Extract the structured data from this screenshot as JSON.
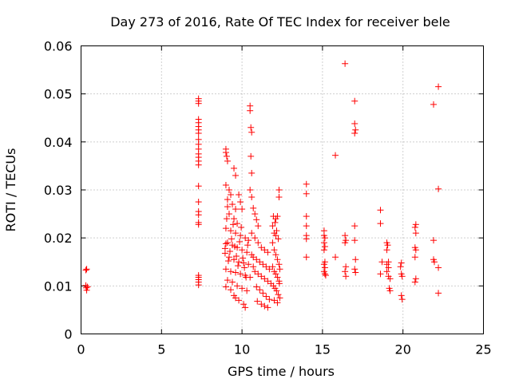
{
  "chart_data": {
    "type": "scatter",
    "title": "Day 273 of 2016, Rate Of TEC Index for receiver bele",
    "xlabel": "GPS time / hours",
    "ylabel": "ROTI / TECUs",
    "xlim": [
      0,
      25
    ],
    "ylim": [
      0,
      0.06
    ],
    "xticks": [
      0,
      5,
      10,
      15,
      20,
      25
    ],
    "xtick_labels": [
      "0",
      "5",
      "10",
      "15",
      "20",
      "25"
    ],
    "yticks": [
      0,
      0.01,
      0.02,
      0.03,
      0.04,
      0.05,
      0.06
    ],
    "ytick_labels": [
      "0",
      "0.01",
      "0.02",
      "0.03",
      "0.04",
      "0.05",
      "0.06"
    ],
    "grid": true,
    "marker": "+",
    "color": "#ff0000",
    "series": [
      {
        "name": "ROTI",
        "points": [
          [
            0.3,
            0.0133
          ],
          [
            0.35,
            0.0135
          ],
          [
            0.3,
            0.0101
          ],
          [
            0.32,
            0.0096
          ],
          [
            0.35,
            0.0091
          ],
          [
            0.4,
            0.0098
          ],
          [
            7.3,
            0.049
          ],
          [
            7.3,
            0.0485
          ],
          [
            7.3,
            0.048
          ],
          [
            7.3,
            0.0447
          ],
          [
            7.3,
            0.044
          ],
          [
            7.3,
            0.0432
          ],
          [
            7.3,
            0.0425
          ],
          [
            7.3,
            0.0418
          ],
          [
            7.3,
            0.0405
          ],
          [
            7.3,
            0.0395
          ],
          [
            7.3,
            0.0385
          ],
          [
            7.3,
            0.0375
          ],
          [
            7.3,
            0.0368
          ],
          [
            7.3,
            0.036
          ],
          [
            7.3,
            0.0352
          ],
          [
            7.3,
            0.0308
          ],
          [
            7.3,
            0.0275
          ],
          [
            7.3,
            0.0255
          ],
          [
            7.3,
            0.0248
          ],
          [
            7.3,
            0.0232
          ],
          [
            7.3,
            0.0228
          ],
          [
            7.3,
            0.0122
          ],
          [
            7.3,
            0.0118
          ],
          [
            7.3,
            0.0113
          ],
          [
            7.3,
            0.0108
          ],
          [
            7.3,
            0.0102
          ],
          [
            9.0,
            0.0385
          ],
          [
            9.0,
            0.0378
          ],
          [
            9.05,
            0.037
          ],
          [
            9.1,
            0.036
          ],
          [
            9.5,
            0.0345
          ],
          [
            9.6,
            0.033
          ],
          [
            9.0,
            0.031
          ],
          [
            9.2,
            0.03
          ],
          [
            9.3,
            0.029
          ],
          [
            9.1,
            0.028
          ],
          [
            9.4,
            0.027
          ],
          [
            9.6,
            0.026
          ],
          [
            9.8,
            0.029
          ],
          [
            9.9,
            0.0275
          ],
          [
            10.0,
            0.026
          ],
          [
            9.2,
            0.025
          ],
          [
            9.5,
            0.024
          ],
          [
            9.7,
            0.023
          ],
          [
            9.0,
            0.022
          ],
          [
            9.3,
            0.0215
          ],
          [
            9.6,
            0.021
          ],
          [
            9.9,
            0.0205
          ],
          [
            10.2,
            0.02
          ],
          [
            10.4,
            0.0195
          ],
          [
            9.1,
            0.019
          ],
          [
            9.4,
            0.0185
          ],
          [
            9.7,
            0.018
          ],
          [
            10.0,
            0.0175
          ],
          [
            10.3,
            0.017
          ],
          [
            10.6,
            0.0165
          ],
          [
            9.2,
            0.016
          ],
          [
            9.5,
            0.0155
          ],
          [
            9.8,
            0.015
          ],
          [
            10.1,
            0.0148
          ],
          [
            10.4,
            0.0145
          ],
          [
            10.7,
            0.014
          ],
          [
            9.0,
            0.0135
          ],
          [
            9.3,
            0.013
          ],
          [
            9.6,
            0.0128
          ],
          [
            9.9,
            0.0125
          ],
          [
            10.2,
            0.0122
          ],
          [
            10.5,
            0.0118
          ],
          [
            9.1,
            0.0112
          ],
          [
            9.4,
            0.0108
          ],
          [
            9.7,
            0.01
          ],
          [
            10.0,
            0.0095
          ],
          [
            10.3,
            0.009
          ],
          [
            9.6,
            0.0075
          ],
          [
            9.8,
            0.007
          ],
          [
            10.1,
            0.0062
          ],
          [
            10.2,
            0.0055
          ],
          [
            9.5,
            0.008
          ],
          [
            9.3,
            0.0092
          ],
          [
            9.0,
            0.0098
          ],
          [
            8.95,
            0.0168
          ],
          [
            8.95,
            0.0178
          ],
          [
            9.0,
            0.0188
          ],
          [
            9.05,
            0.024
          ],
          [
            9.1,
            0.0265
          ],
          [
            9.15,
            0.0152
          ],
          [
            9.25,
            0.0172
          ],
          [
            9.35,
            0.0198
          ],
          [
            9.45,
            0.0228
          ],
          [
            9.55,
            0.0182
          ],
          [
            9.65,
            0.0162
          ],
          [
            9.75,
            0.0142
          ],
          [
            9.85,
            0.0192
          ],
          [
            9.95,
            0.0222
          ],
          [
            10.05,
            0.0158
          ],
          [
            10.15,
            0.0138
          ],
          [
            10.25,
            0.0118
          ],
          [
            10.35,
            0.0185
          ],
          [
            10.5,
            0.0475
          ],
          [
            10.5,
            0.0465
          ],
          [
            10.55,
            0.043
          ],
          [
            10.6,
            0.042
          ],
          [
            10.55,
            0.037
          ],
          [
            10.6,
            0.0335
          ],
          [
            10.5,
            0.03
          ],
          [
            10.6,
            0.0285
          ],
          [
            10.7,
            0.0262
          ],
          [
            10.8,
            0.025
          ],
          [
            10.9,
            0.0238
          ],
          [
            11.0,
            0.0225
          ],
          [
            10.6,
            0.021
          ],
          [
            10.8,
            0.02
          ],
          [
            11.0,
            0.019
          ],
          [
            11.2,
            0.018
          ],
          [
            11.4,
            0.0175
          ],
          [
            11.6,
            0.017
          ],
          [
            10.7,
            0.016
          ],
          [
            10.9,
            0.0155
          ],
          [
            11.1,
            0.015
          ],
          [
            11.3,
            0.0145
          ],
          [
            11.5,
            0.014
          ],
          [
            11.7,
            0.0135
          ],
          [
            10.8,
            0.013
          ],
          [
            11.0,
            0.0125
          ],
          [
            11.2,
            0.012
          ],
          [
            11.4,
            0.0115
          ],
          [
            11.6,
            0.011
          ],
          [
            11.8,
            0.0105
          ],
          [
            10.9,
            0.0098
          ],
          [
            11.1,
            0.0092
          ],
          [
            11.3,
            0.0085
          ],
          [
            11.5,
            0.0078
          ],
          [
            11.7,
            0.0072
          ],
          [
            11.2,
            0.0062
          ],
          [
            11.4,
            0.0058
          ],
          [
            11.6,
            0.0055
          ],
          [
            10.95,
            0.0068
          ],
          [
            11.9,
            0.0225
          ],
          [
            12.0,
            0.021
          ],
          [
            12.1,
            0.0205
          ],
          [
            11.9,
            0.019
          ],
          [
            12.0,
            0.0175
          ],
          [
            12.1,
            0.0165
          ],
          [
            12.2,
            0.0155
          ],
          [
            12.3,
            0.0145
          ],
          [
            11.9,
            0.014
          ],
          [
            12.0,
            0.013
          ],
          [
            12.1,
            0.0125
          ],
          [
            12.2,
            0.0118
          ],
          [
            12.3,
            0.011
          ],
          [
            11.95,
            0.01
          ],
          [
            12.05,
            0.0095
          ],
          [
            12.15,
            0.009
          ],
          [
            12.25,
            0.0082
          ],
          [
            12.35,
            0.0075
          ],
          [
            12.0,
            0.007
          ],
          [
            12.2,
            0.0065
          ],
          [
            12.3,
            0.03
          ],
          [
            12.3,
            0.0285
          ],
          [
            12.2,
            0.0245
          ],
          [
            12.1,
            0.024
          ],
          [
            11.95,
            0.0245
          ],
          [
            12.05,
            0.0232
          ],
          [
            12.15,
            0.0215
          ],
          [
            12.25,
            0.0198
          ],
          [
            12.35,
            0.0135
          ],
          [
            12.32,
            0.0105
          ],
          [
            14.0,
            0.0312
          ],
          [
            14.0,
            0.0292
          ],
          [
            14.0,
            0.0245
          ],
          [
            14.0,
            0.0225
          ],
          [
            14.0,
            0.0205
          ],
          [
            14.0,
            0.0198
          ],
          [
            14.0,
            0.016
          ],
          [
            15.1,
            0.0215
          ],
          [
            15.1,
            0.0205
          ],
          [
            15.15,
            0.02
          ],
          [
            15.1,
            0.019
          ],
          [
            15.15,
            0.0182
          ],
          [
            15.1,
            0.0175
          ],
          [
            15.15,
            0.015
          ],
          [
            15.1,
            0.0145
          ],
          [
            15.15,
            0.0138
          ],
          [
            15.1,
            0.013
          ],
          [
            15.15,
            0.0125
          ],
          [
            15.2,
            0.0122
          ],
          [
            15.8,
            0.0372
          ],
          [
            15.8,
            0.016
          ],
          [
            16.4,
            0.0563
          ],
          [
            16.4,
            0.0205
          ],
          [
            16.45,
            0.0195
          ],
          [
            16.4,
            0.019
          ],
          [
            16.45,
            0.014
          ],
          [
            16.4,
            0.013
          ],
          [
            16.45,
            0.012
          ],
          [
            17.0,
            0.0485
          ],
          [
            17.0,
            0.0438
          ],
          [
            17.05,
            0.0425
          ],
          [
            17.0,
            0.0418
          ],
          [
            17.0,
            0.0225
          ],
          [
            17.0,
            0.0195
          ],
          [
            17.05,
            0.0155
          ],
          [
            17.0,
            0.0135
          ],
          [
            17.05,
            0.0128
          ],
          [
            18.6,
            0.0258
          ],
          [
            18.6,
            0.023
          ],
          [
            18.7,
            0.015
          ],
          [
            18.6,
            0.0125
          ],
          [
            19.0,
            0.019
          ],
          [
            19.05,
            0.0185
          ],
          [
            19.0,
            0.0175
          ],
          [
            19.1,
            0.015
          ],
          [
            19.0,
            0.0145
          ],
          [
            19.1,
            0.0138
          ],
          [
            19.0,
            0.013
          ],
          [
            19.1,
            0.012
          ],
          [
            19.2,
            0.0115
          ],
          [
            19.15,
            0.0095
          ],
          [
            19.2,
            0.009
          ],
          [
            19.9,
            0.0148
          ],
          [
            19.85,
            0.014
          ],
          [
            19.9,
            0.0125
          ],
          [
            19.95,
            0.012
          ],
          [
            19.9,
            0.008
          ],
          [
            19.95,
            0.0072
          ],
          [
            20.8,
            0.0228
          ],
          [
            20.75,
            0.0222
          ],
          [
            20.8,
            0.021
          ],
          [
            20.75,
            0.018
          ],
          [
            20.8,
            0.0175
          ],
          [
            20.75,
            0.016
          ],
          [
            20.8,
            0.0115
          ],
          [
            20.75,
            0.0108
          ],
          [
            21.9,
            0.0478
          ],
          [
            21.9,
            0.0195
          ],
          [
            21.9,
            0.0155
          ],
          [
            21.95,
            0.015
          ],
          [
            22.2,
            0.0515
          ],
          [
            22.2,
            0.0302
          ],
          [
            22.2,
            0.0138
          ],
          [
            22.2,
            0.0085
          ]
        ]
      }
    ]
  }
}
